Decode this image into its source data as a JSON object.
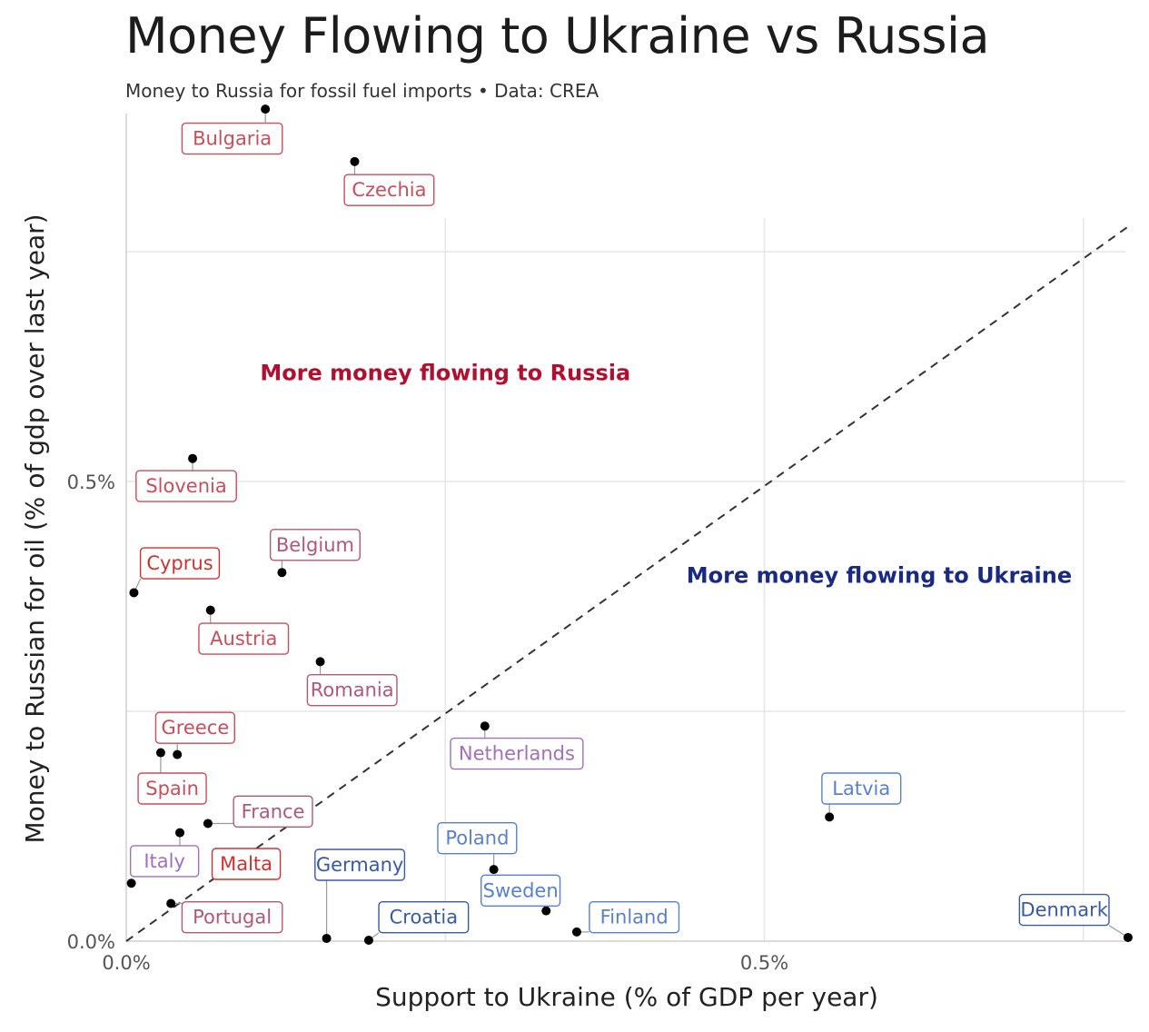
{
  "chart_data": {
    "type": "scatter",
    "title": "Money Flowing to Ukraine vs Russia",
    "subtitle": "Money to Russia for fossil fuel imports • Data: CREA",
    "xlabel": "Support to Ukraine (% of GDP per year)",
    "ylabel": "Money to Russian for oil (% of gdp over last year)",
    "xlim": [
      0,
      0.785
    ],
    "ylim": [
      0,
      0.9
    ],
    "x_ticks": [
      0,
      0.5
    ],
    "y_ticks": [
      0,
      0.5
    ],
    "x_tick_labels": [
      "0.0%",
      "0.5%"
    ],
    "y_tick_labels": [
      "0.0%",
      "0.5%"
    ],
    "grid": true,
    "reference_line": "y = x (dashed)",
    "annotations": [
      {
        "text": "More money flowing to Russia",
        "x": 0.25,
        "y": 0.61,
        "color": "#b01030"
      },
      {
        "text": "More money flowing to Ukraine",
        "x": 0.59,
        "y": 0.39,
        "color": "#1a2a80"
      }
    ],
    "points": [
      {
        "name": "Bulgaria",
        "x": 0.109,
        "y": 0.905,
        "color": "#c64f5c",
        "lx": 0.083,
        "ly": 0.873
      },
      {
        "name": "Czechia",
        "x": 0.179,
        "y": 0.848,
        "color": "#c64f5c",
        "lx": 0.206,
        "ly": 0.817
      },
      {
        "name": "Slovenia",
        "x": 0.052,
        "y": 0.525,
        "color": "#c64f5c",
        "lx": 0.047,
        "ly": 0.495
      },
      {
        "name": "Belgium",
        "x": 0.122,
        "y": 0.401,
        "color": "#b05878",
        "lx": 0.148,
        "ly": 0.431
      },
      {
        "name": "Cyprus",
        "x": 0.006,
        "y": 0.379,
        "color": "#cc3330",
        "lx": 0.042,
        "ly": 0.411
      },
      {
        "name": "Austria",
        "x": 0.066,
        "y": 0.36,
        "color": "#c64f5c",
        "lx": 0.092,
        "ly": 0.329
      },
      {
        "name": "Romania",
        "x": 0.152,
        "y": 0.304,
        "color": "#b05878",
        "lx": 0.177,
        "ly": 0.273
      },
      {
        "name": "Greece",
        "x": 0.04,
        "y": 0.203,
        "color": "#c64f5c",
        "lx": 0.054,
        "ly": 0.232
      },
      {
        "name": "Spain",
        "x": 0.027,
        "y": 0.205,
        "color": "#c64f5c",
        "lx": 0.036,
        "ly": 0.166
      },
      {
        "name": "Netherlands",
        "x": 0.281,
        "y": 0.234,
        "color": "#a070b8",
        "lx": 0.306,
        "ly": 0.204
      },
      {
        "name": "Latvia",
        "x": 0.551,
        "y": 0.135,
        "color": "#5a80c8",
        "lx": 0.576,
        "ly": 0.166
      },
      {
        "name": "France",
        "x": 0.064,
        "y": 0.128,
        "color": "#b05878",
        "lx": 0.115,
        "ly": 0.141
      },
      {
        "name": "Italy",
        "x": 0.042,
        "y": 0.118,
        "color": "#a070b8",
        "lx": 0.03,
        "ly": 0.087
      },
      {
        "name": "Poland",
        "x": 0.288,
        "y": 0.078,
        "color": "#5a80c8",
        "lx": 0.275,
        "ly": 0.112
      },
      {
        "name": "Malta",
        "x": 0.09,
        "y": 0.083,
        "color": "#cc3330",
        "lx": 0.094,
        "ly": 0.084
      },
      {
        "name": "Germany",
        "x": 0.157,
        "y": 0.003,
        "color": "#3a5aa0",
        "lx": 0.183,
        "ly": 0.083
      },
      {
        "name": "Sweden",
        "x": 0.329,
        "y": 0.033,
        "color": "#5a80c8",
        "lx": 0.309,
        "ly": 0.055
      },
      {
        "name": "Portugal",
        "x": 0.035,
        "y": 0.041,
        "color": "#b05878",
        "lx": 0.083,
        "ly": 0.026
      },
      {
        "name": "Croatia",
        "x": 0.19,
        "y": 0.001,
        "color": "#3a5aa0",
        "lx": 0.233,
        "ly": 0.026
      },
      {
        "name": "Finland",
        "x": 0.353,
        "y": 0.01,
        "color": "#5a80c8",
        "lx": 0.398,
        "ly": 0.026
      },
      {
        "name": "Denmark",
        "x": 0.785,
        "y": 0.004,
        "color": "#3a5aa0",
        "lx": 0.735,
        "ly": 0.034
      }
    ],
    "extra_points": [
      {
        "x": 0.004,
        "y": 0.063
      }
    ]
  }
}
